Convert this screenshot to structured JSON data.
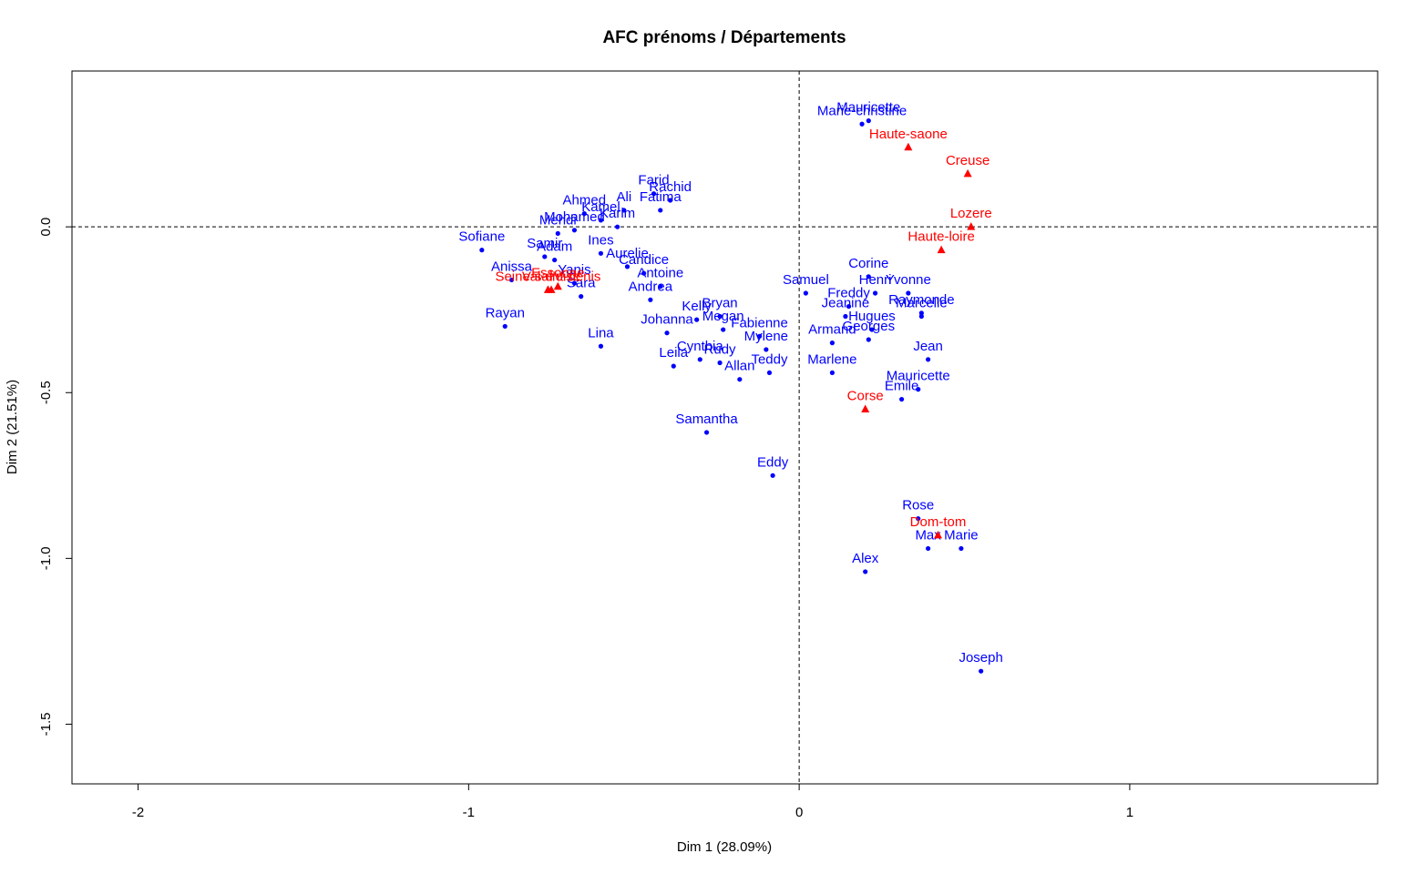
{
  "chart_data": {
    "type": "scatter",
    "title": "AFC prénoms / Départements",
    "xlabel": "Dim 1 (28.09%)",
    "ylabel": "Dim 2 (21.51%)",
    "xlim": [
      -2.2,
      1.75
    ],
    "ylim": [
      -1.68,
      0.47
    ],
    "x_ticks": [
      -2,
      -1,
      0,
      1
    ],
    "y_ticks": [
      0.0,
      -0.5,
      -1.0,
      -1.5
    ],
    "x_tick_labels": [
      "-2",
      "-1",
      "0",
      "1"
    ],
    "y_tick_labels": [
      "0.0",
      "-0.5",
      "-1.0",
      "-1.5"
    ],
    "reference_lines": {
      "x": 0,
      "y": 0,
      "style": "dashed"
    },
    "grid": false,
    "colors": {
      "rows": "#0000ff",
      "cols": "#ff0000"
    },
    "series": [
      {
        "name": "Prénoms",
        "marker": "circle",
        "color": "#0000ff",
        "points": [
          {
            "label": "Mauricette",
            "x": 0.21,
            "y": 0.32
          },
          {
            "label": "Marie-christine",
            "x": 0.19,
            "y": 0.31
          },
          {
            "label": "Farid",
            "x": -0.44,
            "y": 0.1
          },
          {
            "label": "Rachid",
            "x": -0.39,
            "y": 0.08
          },
          {
            "label": "Ahmed",
            "x": -0.65,
            "y": 0.04
          },
          {
            "label": "Ali",
            "x": -0.53,
            "y": 0.05
          },
          {
            "label": "Kamel",
            "x": -0.6,
            "y": 0.02
          },
          {
            "label": "Fatima",
            "x": -0.42,
            "y": 0.05
          },
          {
            "label": "Karim",
            "x": -0.55,
            "y": 0.0
          },
          {
            "label": "Mohamed",
            "x": -0.68,
            "y": -0.01
          },
          {
            "label": "Mehdi",
            "x": -0.73,
            "y": -0.02
          },
          {
            "label": "Sofiane",
            "x": -0.96,
            "y": -0.07
          },
          {
            "label": "Samir",
            "x": -0.77,
            "y": -0.09
          },
          {
            "label": "Adam",
            "x": -0.74,
            "y": -0.1
          },
          {
            "label": "Ines",
            "x": -0.6,
            "y": -0.08
          },
          {
            "label": "Anissa",
            "x": -0.87,
            "y": -0.16
          },
          {
            "label": "Yanis",
            "x": -0.68,
            "y": -0.17
          },
          {
            "label": "Sara",
            "x": -0.66,
            "y": -0.21
          },
          {
            "label": "Rayan",
            "x": -0.89,
            "y": -0.3
          },
          {
            "label": "Lina",
            "x": -0.6,
            "y": -0.36
          },
          {
            "label": "Aurelie",
            "x": -0.52,
            "y": -0.12
          },
          {
            "label": "Candice",
            "x": -0.47,
            "y": -0.14
          },
          {
            "label": "Andrea",
            "x": -0.45,
            "y": -0.22
          },
          {
            "label": "Antoine",
            "x": -0.42,
            "y": -0.18
          },
          {
            "label": "Johanna",
            "x": -0.4,
            "y": -0.32
          },
          {
            "label": "Leila",
            "x": -0.38,
            "y": -0.42
          },
          {
            "label": "Cynthia",
            "x": -0.3,
            "y": -0.4
          },
          {
            "label": "Rudy",
            "x": -0.24,
            "y": -0.41
          },
          {
            "label": "Allan",
            "x": -0.18,
            "y": -0.46
          },
          {
            "label": "Kelly",
            "x": -0.31,
            "y": -0.28
          },
          {
            "label": "Bryan",
            "x": -0.24,
            "y": -0.27
          },
          {
            "label": "Megan",
            "x": -0.23,
            "y": -0.31
          },
          {
            "label": "Samantha",
            "x": -0.28,
            "y": -0.62
          },
          {
            "label": "Eddy",
            "x": -0.08,
            "y": -0.75
          },
          {
            "label": "Mylene",
            "x": -0.1,
            "y": -0.37
          },
          {
            "label": "Teddy",
            "x": -0.09,
            "y": -0.44
          },
          {
            "label": "Fabienne",
            "x": -0.12,
            "y": -0.33
          },
          {
            "label": "Samuel",
            "x": 0.02,
            "y": -0.2
          },
          {
            "label": "Freddy",
            "x": 0.15,
            "y": -0.24
          },
          {
            "label": "Corine",
            "x": 0.21,
            "y": -0.15
          },
          {
            "label": "Armand",
            "x": 0.1,
            "y": -0.35
          },
          {
            "label": "Marlene",
            "x": 0.1,
            "y": -0.44
          },
          {
            "label": "Jeanine",
            "x": 0.14,
            "y": -0.27
          },
          {
            "label": "Hugues",
            "x": 0.22,
            "y": -0.31
          },
          {
            "label": "Georges",
            "x": 0.21,
            "y": -0.34
          },
          {
            "label": "Henri",
            "x": 0.23,
            "y": -0.2
          },
          {
            "label": "Yvonne",
            "x": 0.33,
            "y": -0.2
          },
          {
            "label": "Raymonde",
            "x": 0.37,
            "y": -0.26
          },
          {
            "label": "Jean",
            "x": 0.39,
            "y": -0.4
          },
          {
            "label": "Marcelle",
            "x": 0.37,
            "y": -0.27
          },
          {
            "label": "Mauricette",
            "x": 0.36,
            "y": -0.49
          },
          {
            "label": "Emile",
            "x": 0.31,
            "y": -0.52
          },
          {
            "label": "Rose",
            "x": 0.36,
            "y": -0.88
          },
          {
            "label": "Max",
            "x": 0.39,
            "y": -0.97
          },
          {
            "label": "Marie",
            "x": 0.49,
            "y": -0.97
          },
          {
            "label": "Alex",
            "x": 0.2,
            "y": -1.04
          },
          {
            "label": "Joseph",
            "x": 0.55,
            "y": -1.34
          }
        ]
      },
      {
        "name": "Départements",
        "marker": "triangle",
        "color": "#ff0000",
        "points": [
          {
            "label": "Creuse",
            "x": 0.51,
            "y": 0.16
          },
          {
            "label": "Lozere",
            "x": 0.52,
            "y": 0.0
          },
          {
            "label": "Haute-saone",
            "x": 0.33,
            "y": 0.24
          },
          {
            "label": "Haute-loire",
            "x": 0.43,
            "y": -0.07
          },
          {
            "label": "Corse",
            "x": 0.2,
            "y": -0.55
          },
          {
            "label": "Dom-tom",
            "x": 0.42,
            "y": -0.93
          },
          {
            "label": "Seine-saint-denis",
            "x": -0.76,
            "y": -0.19
          },
          {
            "label": "Val-d'oise",
            "x": -0.75,
            "y": -0.19
          },
          {
            "label": "Essonne",
            "x": -0.73,
            "y": -0.18
          }
        ]
      }
    ]
  }
}
